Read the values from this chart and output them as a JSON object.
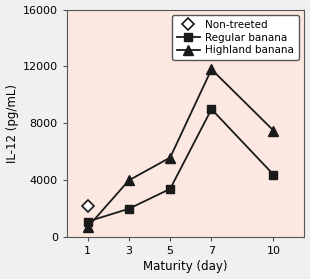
{
  "non_treated_x": [
    1
  ],
  "non_treated_y": [
    2200
  ],
  "regular_banana_x": [
    1,
    3,
    5,
    7,
    10
  ],
  "regular_banana_y": [
    1100,
    2000,
    3400,
    9000,
    4400
  ],
  "highland_banana_x": [
    1,
    3,
    5,
    7,
    10
  ],
  "highland_banana_y": [
    700,
    4000,
    5600,
    11800,
    7500
  ],
  "xlabel": "Maturity (day)",
  "ylabel": "IL-12 (pg/mL)",
  "xticks": [
    1,
    3,
    5,
    7,
    10
  ],
  "yticks": [
    0,
    4000,
    8000,
    12000,
    16000
  ],
  "ylim": [
    0,
    16000
  ],
  "xlim_left": 0,
  "xlim_right": 11.5,
  "legend_labels": [
    "Non-treeted",
    "Regular banana",
    "Highland banana"
  ],
  "line_color": "#1a1a1a",
  "plot_bg_color": "#fce8e0",
  "outer_bg_color": "#f0f0f0",
  "fontsize": 8.5,
  "tick_fontsize": 8,
  "legend_fontsize": 7.5
}
